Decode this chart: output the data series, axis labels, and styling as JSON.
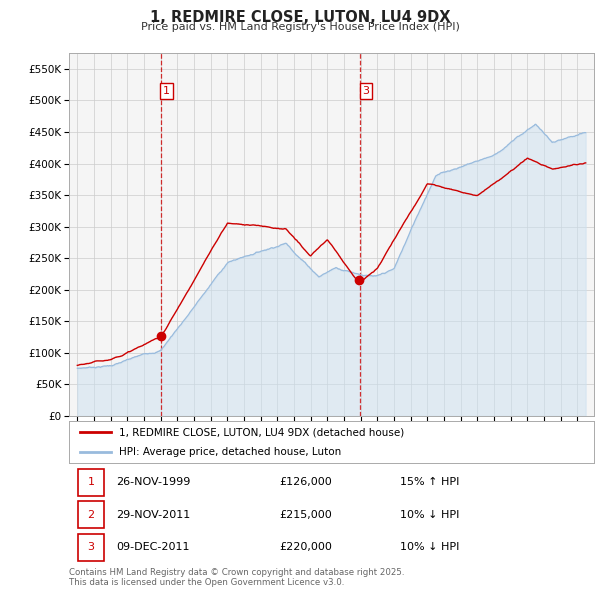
{
  "title": "1, REDMIRE CLOSE, LUTON, LU4 9DX",
  "subtitle": "Price paid vs. HM Land Registry's House Price Index (HPI)",
  "ylim": [
    0,
    575000
  ],
  "yticks": [
    0,
    50000,
    100000,
    150000,
    200000,
    250000,
    300000,
    350000,
    400000,
    450000,
    500000,
    550000
  ],
  "ytick_labels": [
    "£0",
    "£50K",
    "£100K",
    "£150K",
    "£200K",
    "£250K",
    "£300K",
    "£350K",
    "£400K",
    "£450K",
    "£500K",
    "£550K"
  ],
  "red_color": "#cc0000",
  "blue_color": "#99bbdd",
  "blue_fill_color": "#cce0f0",
  "grid_color": "#cccccc",
  "background_color": "#ffffff",
  "plot_bg_color": "#f5f5f5",
  "legend_label_red": "1, REDMIRE CLOSE, LUTON, LU4 9DX (detached house)",
  "legend_label_blue": "HPI: Average price, detached house, Luton",
  "vline1_x": 2000.0,
  "vline2_x": 2011.95,
  "marker1": {
    "year": 2000.0,
    "price": 126000
  },
  "marker2": {
    "year": 2011.92,
    "price": 215000
  },
  "marker3": {
    "year": 2011.95,
    "price": 220000
  },
  "table_rows": [
    {
      "num": "1",
      "date": "26-NOV-1999",
      "price": "£126,000",
      "info": "15% ↑ HPI"
    },
    {
      "num": "2",
      "date": "29-NOV-2011",
      "price": "£215,000",
      "info": "10% ↓ HPI"
    },
    {
      "num": "3",
      "date": "09-DEC-2011",
      "price": "£220,000",
      "info": "10% ↓ HPI"
    }
  ],
  "footer": "Contains HM Land Registry data © Crown copyright and database right 2025.\nThis data is licensed under the Open Government Licence v3.0.",
  "xlim_left": 1994.5,
  "xlim_right": 2026.0
}
